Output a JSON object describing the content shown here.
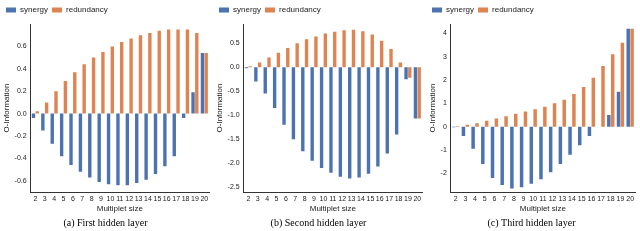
{
  "chart_data": [
    {
      "type": "bar",
      "title": "(a) First hidden layer",
      "x_label": "Multiplet size",
      "y_label": "O-Information",
      "categories": [
        "2",
        "3",
        "4",
        "5",
        "6",
        "7",
        "8",
        "9",
        "10",
        "11",
        "12",
        "13",
        "14",
        "15",
        "16",
        "17",
        "18",
        "19",
        "20"
      ],
      "series": [
        {
          "name": "synergy",
          "color": "#4c72b0",
          "values": [
            -0.04,
            -0.15,
            -0.27,
            -0.38,
            -0.46,
            -0.52,
            -0.57,
            -0.61,
            -0.63,
            -0.64,
            -0.64,
            -0.62,
            -0.59,
            -0.54,
            -0.47,
            -0.38,
            -0.04,
            0.19,
            0.54
          ]
        },
        {
          "name": "redundancy",
          "color": "#dd8452",
          "values": [
            0.02,
            0.1,
            0.2,
            0.29,
            0.37,
            0.44,
            0.5,
            0.55,
            0.6,
            0.64,
            0.67,
            0.7,
            0.72,
            0.74,
            0.75,
            0.75,
            0.75,
            0.72,
            0.54
          ]
        }
      ],
      "ylim": [
        -0.7,
        0.8
      ],
      "yticks": [
        -0.6,
        -0.4,
        -0.2,
        {
          "value": 0,
          "label": "0.0"
        },
        0.2,
        0.4,
        0.6
      ],
      "grid": false,
      "legend": "upper left"
    },
    {
      "type": "bar",
      "title": "(b) Second hidden layer",
      "x_label": "Multiplet size",
      "y_label": "O-Information",
      "categories": [
        "2",
        "3",
        "4",
        "5",
        "6",
        "7",
        "8",
        "9",
        "10",
        "11",
        "12",
        "13",
        "14",
        "15",
        "16",
        "17",
        "18",
        "19",
        "20"
      ],
      "series": [
        {
          "name": "synergy",
          "color": "#4c72b0",
          "values": [
            -0.02,
            -0.3,
            -0.55,
            -0.85,
            -1.2,
            -1.5,
            -1.75,
            -1.95,
            -2.1,
            -2.2,
            -2.28,
            -2.32,
            -2.3,
            -2.22,
            -2.07,
            -1.8,
            -1.4,
            -0.25,
            -1.07
          ]
        },
        {
          "name": "redundancy",
          "color": "#dd8452",
          "values": [
            0.02,
            0.1,
            0.2,
            0.3,
            0.4,
            0.5,
            0.58,
            0.64,
            0.7,
            0.74,
            0.77,
            0.78,
            0.75,
            0.68,
            0.55,
            0.38,
            0.1,
            -0.22,
            -1.07
          ]
        }
      ],
      "ylim": [
        -2.6,
        0.9
      ],
      "yticks": [
        {
          "value": -2.5,
          "label": "-2.5"
        },
        {
          "value": -2,
          "label": "-2.0"
        },
        {
          "value": -1.5,
          "label": "-1.5"
        },
        {
          "value": -1,
          "label": "-1.0"
        },
        {
          "value": -0.5,
          "label": "-0.5"
        },
        {
          "value": 0,
          "label": "0.0"
        },
        0.5
      ],
      "grid": false,
      "legend": "upper left"
    },
    {
      "type": "bar",
      "title": "(c) Third hidden layer",
      "x_label": "Multiplet size",
      "y_label": "O-Information",
      "categories": [
        "2",
        "3",
        "4",
        "5",
        "6",
        "7",
        "8",
        "9",
        "10",
        "11",
        "12",
        "13",
        "14",
        "15",
        "16",
        "17",
        "18",
        "19",
        "20"
      ],
      "series": [
        {
          "name": "synergy",
          "color": "#4c72b0",
          "values": [
            -0.02,
            -0.4,
            -0.95,
            -1.6,
            -2.2,
            -2.5,
            -2.65,
            -2.6,
            -2.45,
            -2.25,
            -1.95,
            -1.6,
            -1.2,
            -0.8,
            -0.4,
            0.0,
            0.5,
            1.5,
            4.2
          ]
        },
        {
          "name": "redundancy",
          "color": "#dd8452",
          "values": [
            0.02,
            0.08,
            0.15,
            0.25,
            0.35,
            0.45,
            0.55,
            0.65,
            0.75,
            0.85,
            1.0,
            1.15,
            1.4,
            1.7,
            2.1,
            2.6,
            3.1,
            3.6,
            4.2
          ]
        }
      ],
      "ylim": [
        -2.8,
        4.4
      ],
      "yticks": [
        -2,
        -1,
        0,
        1,
        2,
        3,
        4
      ],
      "grid": false,
      "legend": "upper left"
    }
  ]
}
